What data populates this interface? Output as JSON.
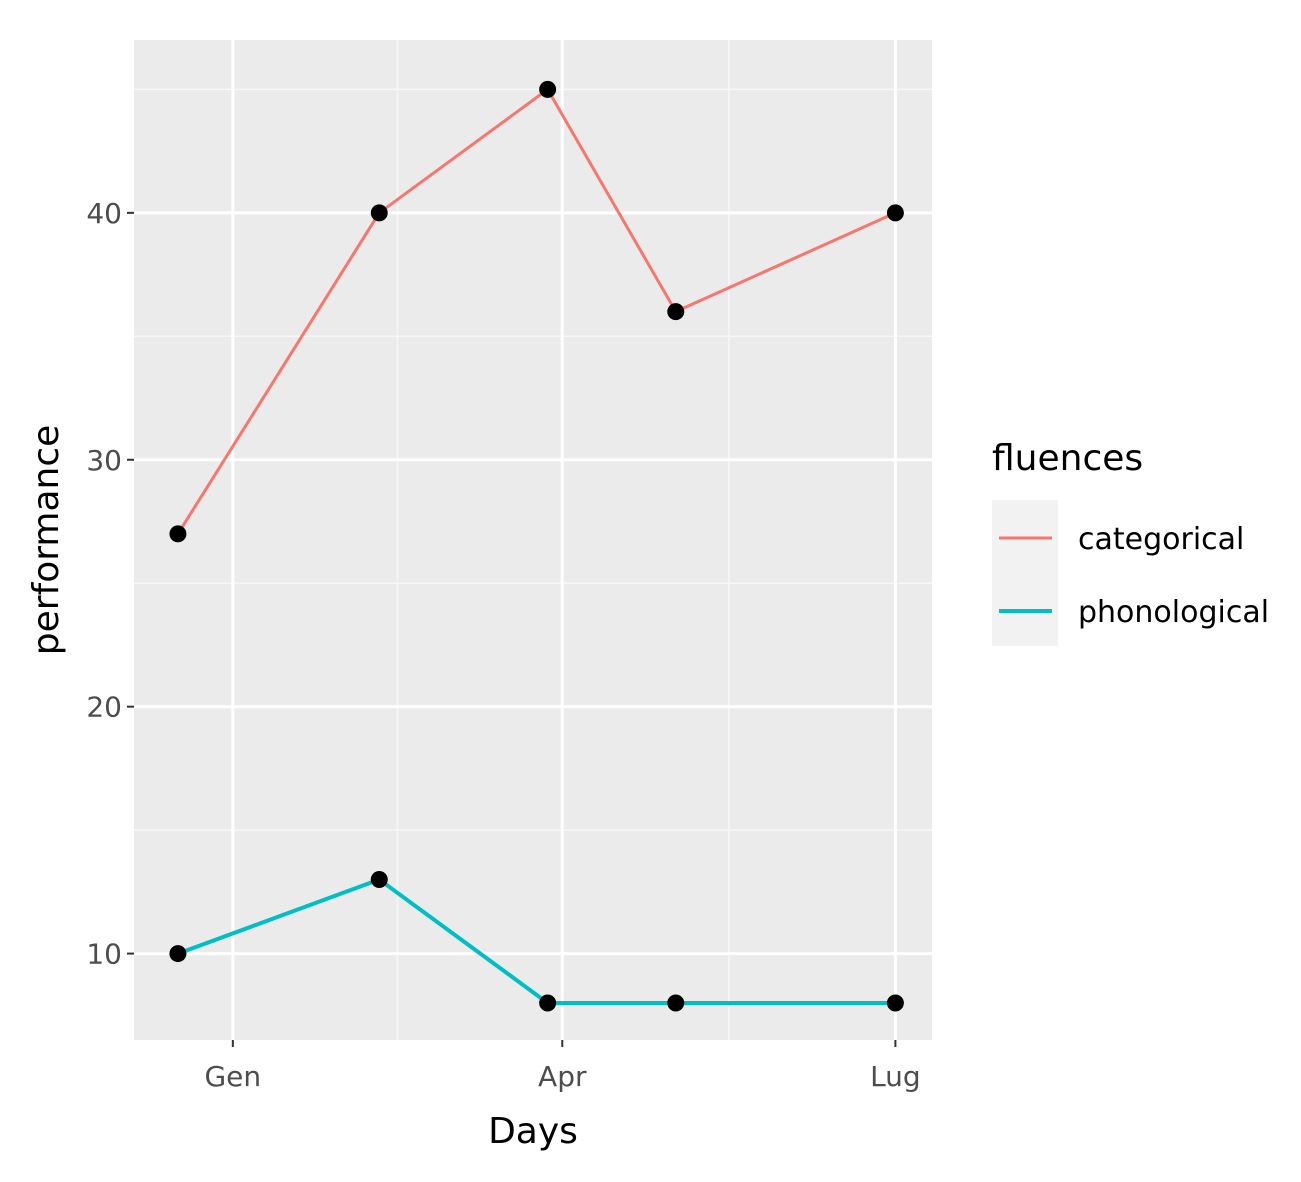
{
  "chart_data": {
    "type": "line",
    "xlabel": "Days",
    "ylabel": "performance",
    "x_axis": {
      "ticks": [
        {
          "label": "Gen",
          "date": "2021-01-01"
        },
        {
          "label": "Apr",
          "date": "2021-04-01"
        },
        {
          "label": "Lug",
          "date": "2021-07-01"
        }
      ],
      "range": [
        "2020-12-05",
        "2021-07-11"
      ]
    },
    "y_axis": {
      "ticks": [
        10,
        20,
        30,
        40
      ],
      "range": [
        6.5,
        47
      ]
    },
    "grid": true,
    "legend": {
      "title": "fluences",
      "position": "right"
    },
    "series": [
      {
        "name": "categorical",
        "color": "#F8766D",
        "points": [
          {
            "x": "2020-12-17",
            "y": 27
          },
          {
            "x": "2021-02-10",
            "y": 40
          },
          {
            "x": "2021-03-28",
            "y": 45
          },
          {
            "x": "2021-05-02",
            "y": 36
          },
          {
            "x": "2021-07-01",
            "y": 40
          }
        ]
      },
      {
        "name": "phonological",
        "color": "#00BFC4",
        "points": [
          {
            "x": "2020-12-17",
            "y": 10
          },
          {
            "x": "2021-02-10",
            "y": 13
          },
          {
            "x": "2021-03-28",
            "y": 8
          },
          {
            "x": "2021-05-02",
            "y": 8
          },
          {
            "x": "2021-07-01",
            "y": 8
          }
        ]
      }
    ]
  }
}
